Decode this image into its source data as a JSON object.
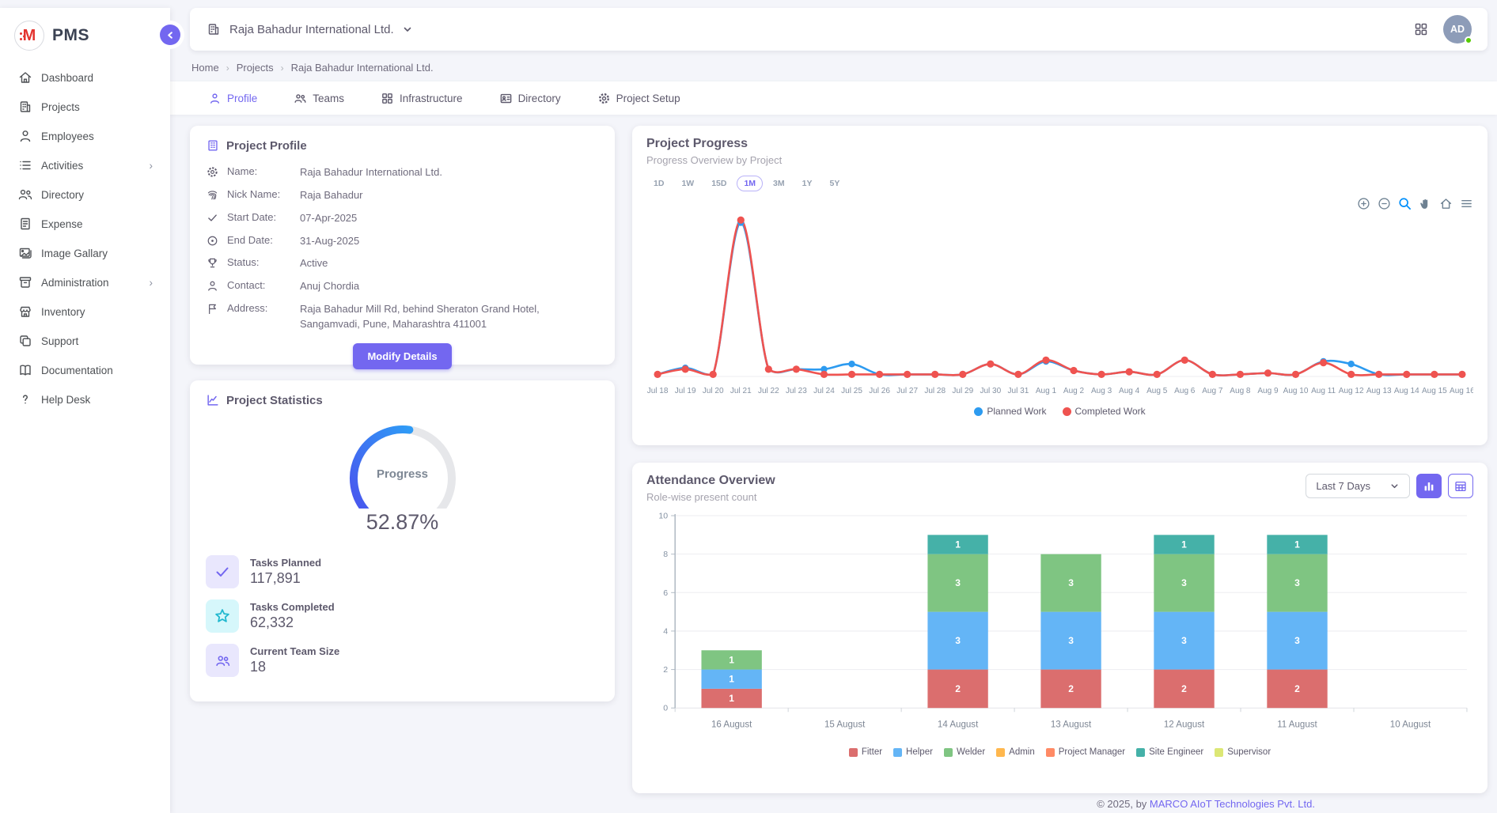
{
  "app": {
    "name": "PMS"
  },
  "sidebar": {
    "items": [
      {
        "label": "Dashboard"
      },
      {
        "label": "Projects"
      },
      {
        "label": "Employees"
      },
      {
        "label": "Activities",
        "expandable": true
      },
      {
        "label": "Directory"
      },
      {
        "label": "Expense"
      },
      {
        "label": "Image Gallary"
      },
      {
        "label": "Administration",
        "expandable": true
      },
      {
        "label": "Inventory"
      },
      {
        "label": "Support"
      },
      {
        "label": "Documentation"
      },
      {
        "label": "Help Desk"
      }
    ]
  },
  "header": {
    "company": "Raja Bahadur International Ltd.",
    "avatar_initials": "AD"
  },
  "breadcrumb": {
    "items": [
      "Home",
      "Projects",
      "Raja Bahadur International Ltd."
    ]
  },
  "tabs": [
    {
      "label": "Profile",
      "active": true
    },
    {
      "label": "Teams"
    },
    {
      "label": "Infrastructure"
    },
    {
      "label": "Directory"
    },
    {
      "label": "Project Setup"
    }
  ],
  "profile_card": {
    "title": "Project Profile",
    "fields": [
      {
        "label": "Name:",
        "value": "Raja Bahadur International Ltd."
      },
      {
        "label": "Nick Name:",
        "value": "Raja Bahadur"
      },
      {
        "label": "Start Date:",
        "value": "07-Apr-2025"
      },
      {
        "label": "End Date:",
        "value": "31-Aug-2025"
      },
      {
        "label": "Status:",
        "value": "Active"
      },
      {
        "label": "Contact:",
        "value": "Anuj Chordia"
      },
      {
        "label": "Address:",
        "value": "Raja Bahadur Mill Rd, behind Sheraton Grand Hotel, Sangamvadi, Pune, Maharashtra 411001"
      }
    ],
    "button_label": "Modify Details"
  },
  "stats_card": {
    "title": "Project Statistics",
    "gauge_label": "Progress",
    "progress_percent": 52.87,
    "progress_display": "52.87%",
    "stats": [
      {
        "label": "Tasks Planned",
        "value": "117,891"
      },
      {
        "label": "Tasks Completed",
        "value": "62,332"
      },
      {
        "label": "Current Team Size",
        "value": "18"
      }
    ]
  },
  "progress_section": {
    "title": "Project Progress",
    "subtitle": "Progress Overview by Project",
    "ranges": [
      {
        "label": "1D"
      },
      {
        "label": "1W"
      },
      {
        "label": "15D"
      },
      {
        "label": "1M",
        "active": true
      },
      {
        "label": "3M"
      },
      {
        "label": "1Y"
      },
      {
        "label": "5Y"
      }
    ],
    "toolbar_icons": [
      "zoom-in",
      "zoom-out",
      "selection-zoom",
      "pan",
      "home",
      "menu"
    ]
  },
  "attendance_section": {
    "title": "Attendance Overview",
    "subtitle": "Role-wise present count",
    "filter_value": "Last 7 Days",
    "view_toggle_icons": [
      "bar-chart",
      "table"
    ]
  },
  "footer": {
    "prefix": "© 2025, by ",
    "company": "MARCO AIoT Technologies Pvt. Ltd."
  },
  "colors": {
    "accent": "#7367f0",
    "planned": "#2d9bf0",
    "completed": "#ef5350"
  },
  "chart_data": [
    {
      "type": "line",
      "title": "Project Progress",
      "x": [
        "Jul 18",
        "Jul 19",
        "Jul 20",
        "Jul 21",
        "Jul 22",
        "Jul 23",
        "Jul 24",
        "Jul 25",
        "Jul 26",
        "Jul 27",
        "Jul 28",
        "Jul 29",
        "Jul 30",
        "Jul 31",
        "Aug 1",
        "Aug 2",
        "Aug 3",
        "Aug 4",
        "Aug 5",
        "Aug 6",
        "Aug 7",
        "Aug 8",
        "Aug 9",
        "Aug 10",
        "Aug 11",
        "Aug 12",
        "Aug 13",
        "Aug 14",
        "Aug 15",
        "Aug 16"
      ],
      "series": [
        {
          "name": "Planned Work",
          "color": "#2d9bf0",
          "values": [
            1,
            6,
            1,
            118,
            5,
            5,
            5,
            9,
            1,
            1,
            1,
            1,
            9,
            1,
            11,
            4,
            1,
            3,
            1,
            12,
            1,
            1,
            2,
            1,
            11,
            9,
            1,
            1,
            1,
            1
          ]
        },
        {
          "name": "Completed Work",
          "color": "#ef5350",
          "values": [
            1,
            5,
            1,
            120,
            5,
            5,
            1,
            1,
            1,
            1,
            1,
            1,
            9,
            1,
            12,
            4,
            1,
            3,
            1,
            12,
            1,
            1,
            2,
            1,
            10,
            1,
            1,
            1,
            1,
            1
          ]
        }
      ],
      "ylim": [
        0,
        125
      ],
      "grid": false,
      "legend_position": "bottom"
    },
    {
      "type": "bar",
      "stacked": true,
      "title": "Attendance Overview",
      "categories": [
        "16 August",
        "15 August",
        "14 August",
        "13 August",
        "12 August",
        "11 August",
        "10 August"
      ],
      "series": [
        {
          "name": "Fitter",
          "color": "#db6e6e",
          "values": [
            1,
            0,
            2,
            2,
            2,
            2,
            0
          ]
        },
        {
          "name": "Helper",
          "color": "#64b5f6",
          "values": [
            1,
            0,
            3,
            3,
            3,
            3,
            0
          ]
        },
        {
          "name": "Welder",
          "color": "#7fc582",
          "values": [
            1,
            0,
            3,
            3,
            3,
            3,
            0
          ]
        },
        {
          "name": "Admin",
          "color": "#ffb74d",
          "values": [
            0,
            0,
            0,
            0,
            0,
            0,
            0
          ]
        },
        {
          "name": "Project Manager",
          "color": "#ff8a65",
          "values": [
            0,
            0,
            0,
            0,
            0,
            0,
            0
          ]
        },
        {
          "name": "Site Engineer",
          "color": "#45b1a8",
          "values": [
            0,
            0,
            1,
            0,
            1,
            1,
            0
          ]
        },
        {
          "name": "Supervisor",
          "color": "#dce775",
          "values": [
            0,
            0,
            0,
            0,
            0,
            0,
            0
          ]
        }
      ],
      "ylim": [
        0,
        10
      ],
      "yticks": [
        0,
        2,
        4,
        6,
        8,
        10
      ],
      "grid": true,
      "legend_position": "bottom"
    }
  ]
}
